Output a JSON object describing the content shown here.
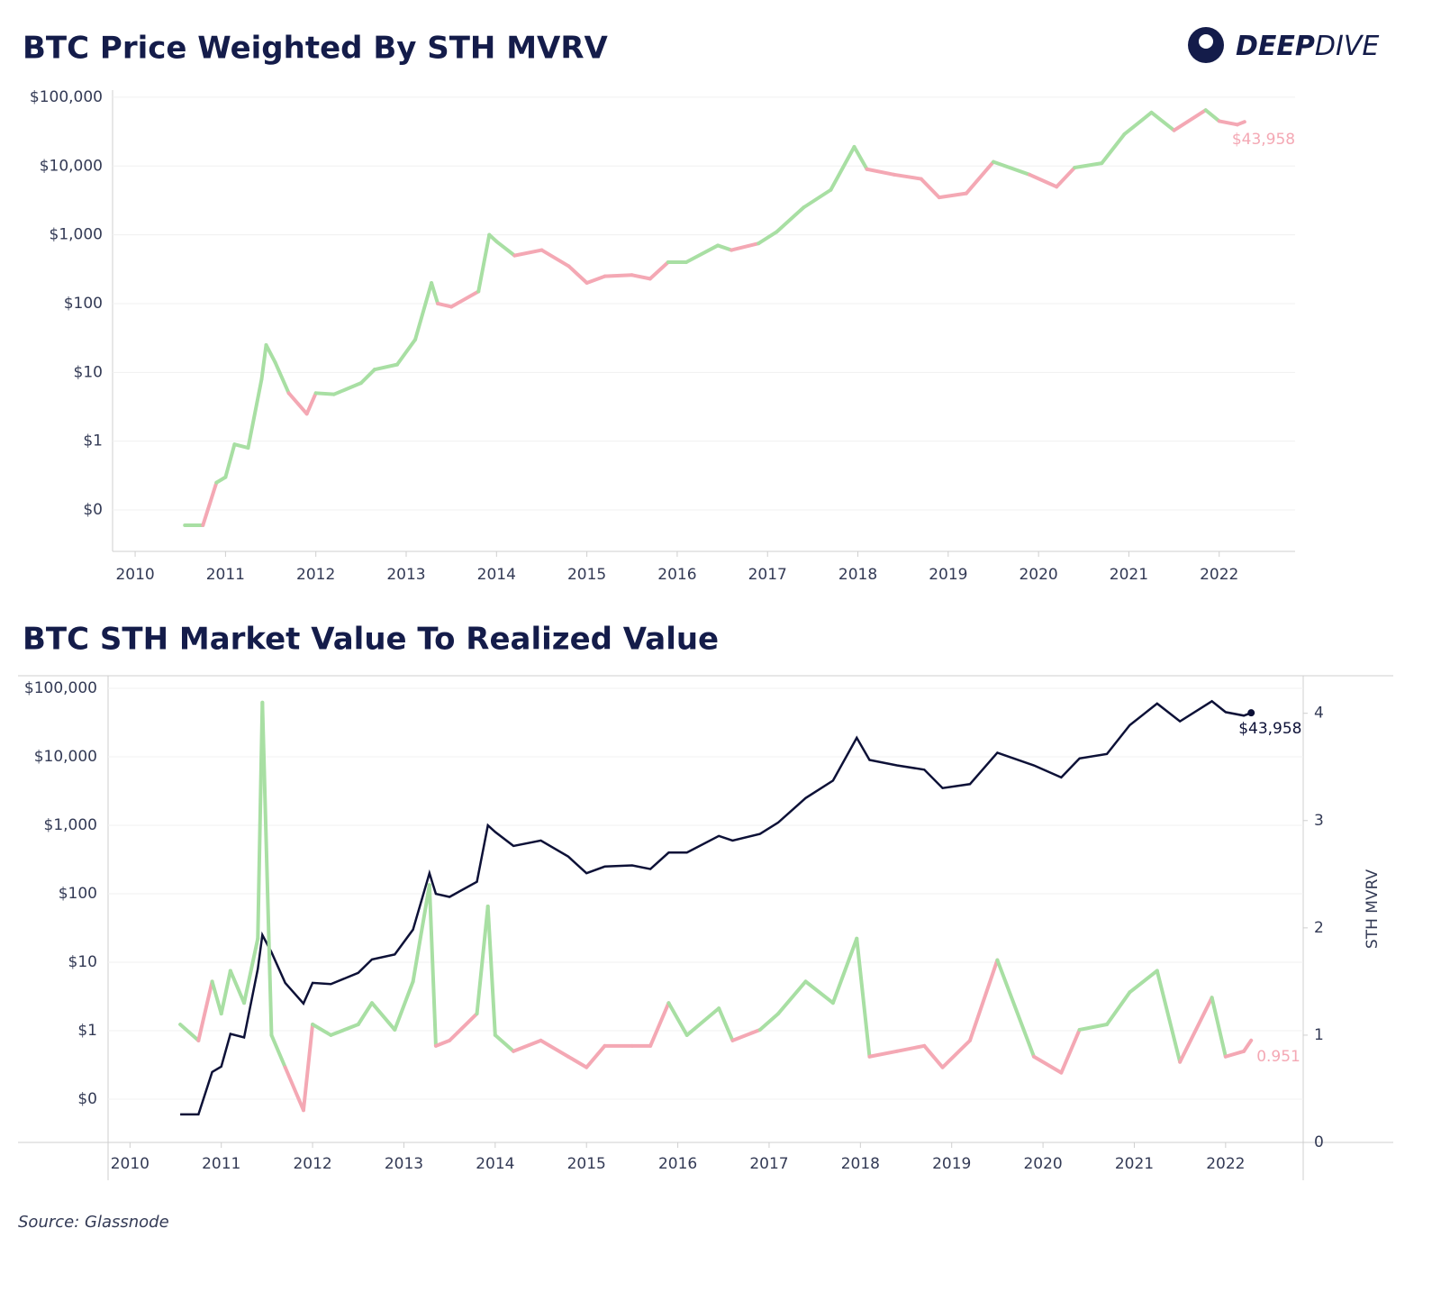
{
  "logo": {
    "bold": "DEEP",
    "light": "DIVE"
  },
  "source": "Source: Glassnode",
  "chart_data": [
    {
      "type": "line",
      "title": "BTC Price Weighted By STH MVRV",
      "log_scale": true,
      "xlim": [
        2009.75,
        2022.84
      ],
      "xticks": [
        2010,
        2011,
        2012,
        2013,
        2014,
        2015,
        2016,
        2017,
        2018,
        2019,
        2020,
        2021,
        2022
      ],
      "ylim": [
        0.025,
        127000
      ],
      "yticks": [
        {
          "value": 0.1,
          "label": "$0"
        },
        {
          "value": 1,
          "label": "$1"
        },
        {
          "value": 10,
          "label": "$10"
        },
        {
          "value": 100,
          "label": "$100"
        },
        {
          "value": 1000,
          "label": "$1,000"
        },
        {
          "value": 10000,
          "label": "$10,000"
        },
        {
          "value": 100000,
          "label": "$100,000"
        }
      ],
      "grid": true,
      "x": [
        2010.55,
        2010.75,
        2010.9,
        2011.0,
        2011.1,
        2011.25,
        2011.4,
        2011.45,
        2011.55,
        2011.7,
        2011.9,
        2012.0,
        2012.2,
        2012.5,
        2012.65,
        2012.9,
        2013.1,
        2013.28,
        2013.35,
        2013.5,
        2013.8,
        2013.92,
        2014.0,
        2014.2,
        2014.5,
        2014.8,
        2015.0,
        2015.2,
        2015.5,
        2015.7,
        2015.9,
        2016.1,
        2016.45,
        2016.6,
        2016.9,
        2017.1,
        2017.4,
        2017.7,
        2017.96,
        2018.1,
        2018.4,
        2018.7,
        2018.9,
        2019.2,
        2019.5,
        2019.9,
        2020.2,
        2020.4,
        2020.7,
        2020.95,
        2021.25,
        2021.5,
        2021.85,
        2022.0,
        2022.2,
        2022.28
      ],
      "series": [
        {
          "values": [
            0.06,
            0.06,
            0.25,
            0.3,
            0.9,
            0.8,
            8,
            25,
            14,
            5,
            2.5,
            5,
            4.8,
            7,
            11,
            13,
            30,
            200,
            100,
            90,
            150,
            1000,
            800,
            500,
            600,
            350,
            200,
            250,
            260,
            230,
            400,
            400,
            700,
            600,
            750,
            1100,
            2500,
            4500,
            19000,
            9000,
            7500,
            6500,
            3500,
            4000,
            11500,
            7500,
            5000,
            9500,
            11000,
            29000,
            60000,
            33000,
            65000,
            45000,
            40000,
            43958
          ],
          "mvrv": [
            1.1,
            0.95,
            1.5,
            1.2,
            1.6,
            1.3,
            1.9,
            4.1,
            1.0,
            0.7,
            0.3,
            1.1,
            1.0,
            1.1,
            1.3,
            1.05,
            1.5,
            2.4,
            0.9,
            0.95,
            1.2,
            2.2,
            1.0,
            0.85,
            0.95,
            0.8,
            0.7,
            0.9,
            0.9,
            0.9,
            1.3,
            1.0,
            1.25,
            0.95,
            1.05,
            1.2,
            1.5,
            1.3,
            1.9,
            0.8,
            0.85,
            0.9,
            0.7,
            0.95,
            1.7,
            0.8,
            0.65,
            1.05,
            1.1,
            1.4,
            1.6,
            0.75,
            1.35,
            0.8,
            0.85,
            0.951
          ],
          "color_threshold": 1,
          "color_above": "#a8dfa3",
          "color_below": "#f4a8b4",
          "end_label": "$43,958"
        }
      ]
    },
    {
      "type": "line",
      "title": "BTC STH Market Value To Realized Value",
      "log_scale": true,
      "xlim": [
        2009.76,
        2022.85
      ],
      "xticks": [
        2010,
        2011,
        2012,
        2013,
        2014,
        2015,
        2016,
        2017,
        2018,
        2019,
        2020,
        2021,
        2022
      ],
      "ylim": [
        0.0234,
        153000
      ],
      "yticks": [
        {
          "value": 0.1,
          "label": "$0"
        },
        {
          "value": 1,
          "label": "$1"
        },
        {
          "value": 10,
          "label": "$10"
        },
        {
          "value": 100,
          "label": "$100"
        },
        {
          "value": 1000,
          "label": "$1,000"
        },
        {
          "value": 10000,
          "label": "$10,000"
        },
        {
          "value": 100000,
          "label": "$100,000"
        }
      ],
      "y2lim": [
        0,
        4.35
      ],
      "y2ticks": [
        0,
        1,
        2,
        3,
        4
      ],
      "y2label": "STH MVRV",
      "grid": true,
      "x": [
        2010.55,
        2010.75,
        2010.9,
        2011.0,
        2011.1,
        2011.25,
        2011.4,
        2011.45,
        2011.55,
        2011.7,
        2011.9,
        2012.0,
        2012.2,
        2012.5,
        2012.65,
        2012.9,
        2013.1,
        2013.28,
        2013.35,
        2013.5,
        2013.8,
        2013.92,
        2014.0,
        2014.2,
        2014.5,
        2014.8,
        2015.0,
        2015.2,
        2015.5,
        2015.7,
        2015.9,
        2016.1,
        2016.45,
        2016.6,
        2016.9,
        2017.1,
        2017.4,
        2017.7,
        2017.96,
        2018.1,
        2018.4,
        2018.7,
        2018.9,
        2019.2,
        2019.5,
        2019.9,
        2020.2,
        2020.4,
        2020.7,
        2020.95,
        2021.25,
        2021.5,
        2021.85,
        2022.0,
        2022.2,
        2022.28
      ],
      "series": [
        {
          "values": [
            0.06,
            0.06,
            0.25,
            0.3,
            0.9,
            0.8,
            8,
            25,
            14,
            5,
            2.5,
            5,
            4.8,
            7,
            11,
            13,
            30,
            200,
            100,
            90,
            150,
            1000,
            800,
            500,
            600,
            350,
            200,
            250,
            260,
            230,
            400,
            400,
            700,
            600,
            750,
            1100,
            2500,
            4500,
            19000,
            9000,
            7500,
            6500,
            3500,
            4000,
            11500,
            7500,
            5000,
            9500,
            11000,
            29000,
            60000,
            33000,
            65000,
            45000,
            40000,
            43958
          ],
          "color": "#0d1137",
          "end_label": "$43,958"
        },
        {
          "values": [
            1.1,
            0.95,
            1.5,
            1.2,
            1.6,
            1.3,
            1.9,
            4.1,
            1.0,
            0.7,
            0.3,
            1.1,
            1.0,
            1.1,
            1.3,
            1.05,
            1.5,
            2.4,
            0.9,
            0.95,
            1.2,
            2.2,
            1.0,
            0.85,
            0.95,
            0.8,
            0.7,
            0.9,
            0.9,
            0.9,
            1.3,
            1.0,
            1.25,
            0.95,
            1.05,
            1.2,
            1.5,
            1.3,
            1.9,
            0.8,
            0.85,
            0.9,
            0.7,
            0.95,
            1.7,
            0.8,
            0.65,
            1.05,
            1.1,
            1.4,
            1.6,
            0.75,
            1.35,
            0.8,
            0.85,
            0.951
          ],
          "axis": "y2",
          "color_threshold": 1,
          "color_above": "#a8dfa3",
          "color_below": "#f4a8b4",
          "end_label": "0.951"
        }
      ]
    }
  ]
}
